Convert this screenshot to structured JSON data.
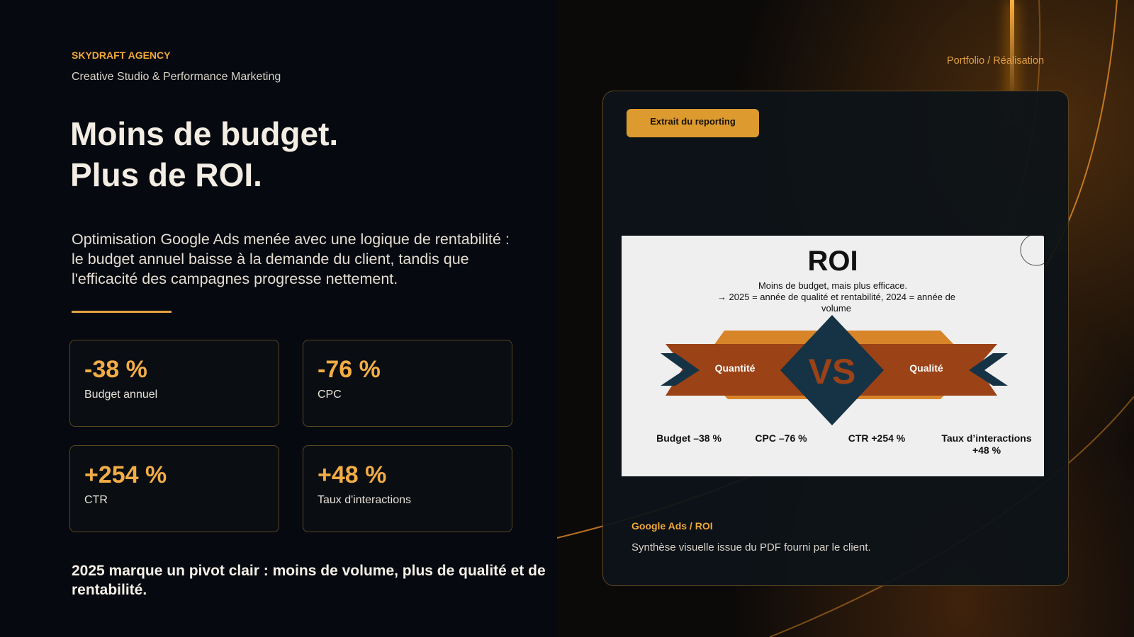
{
  "brand": {
    "name": "SKYDRAFT AGENCY",
    "tagline": "Creative Studio & Performance Marketing"
  },
  "headline": {
    "line1": "Moins de budget.",
    "line2": "Plus de ROI."
  },
  "description": "Optimisation Google Ads menée avec une logique de rentabilité : le budget annuel baisse à la demande du client, tandis que l'efficacité des campagnes progresse nettement.",
  "stats": [
    {
      "value": "-38 %",
      "label": "Budget annuel"
    },
    {
      "value": "-76 %",
      "label": "CPC"
    },
    {
      "value": "+254 %",
      "label": "CTR"
    },
    {
      "value": "+48 %",
      "label": "Taux d'interactions"
    }
  ],
  "conclusion": "2025 marque un pivot clair : moins de volume, plus de qualité et de rentabilité.",
  "breadcrumb": "Portfolio / Réalisation",
  "panel": {
    "badge": "Extrait du reporting",
    "slide": {
      "title": "ROI",
      "subtitle1": "Moins de budget, mais plus efficace.",
      "subtitle2": "→ 2025 = année de qualité et rentabilité, 2024 = année de volume",
      "left": "Quantité",
      "vs": "VS",
      "right": "Qualité",
      "metrics": [
        "Budget –38 %",
        "CPC –76 %",
        "CTR +254 %",
        "Taux d’interactions +48 %"
      ]
    },
    "caption_title": "Google Ads / ROI",
    "caption_text": "Synthèse visuelle issue du PDF fourni par le client."
  },
  "colors": {
    "accent": "#f0a83a",
    "orange": "#d8852a",
    "rust": "#9b4217",
    "navy": "#163345"
  }
}
